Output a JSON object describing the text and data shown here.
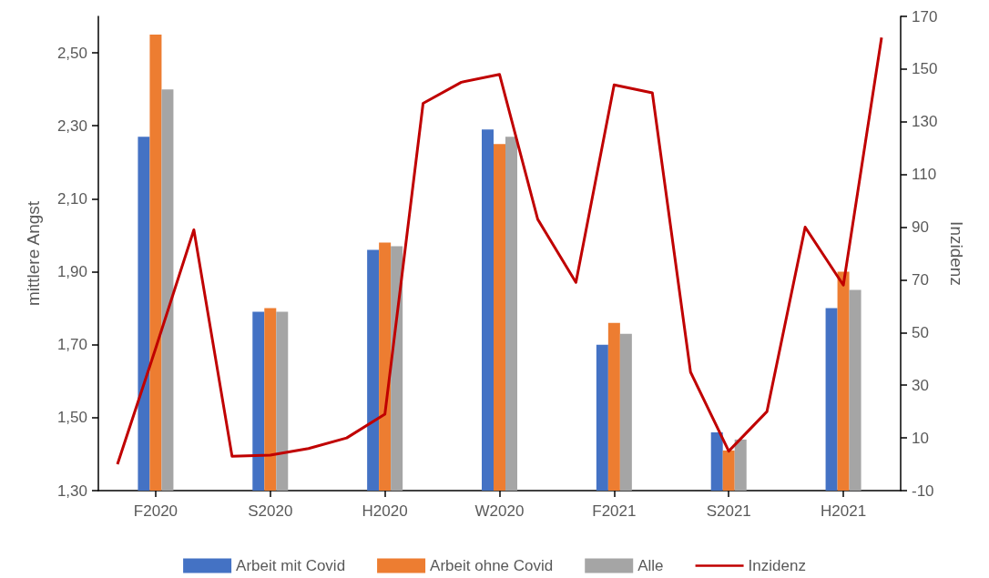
{
  "chart_data": {
    "type": "bar",
    "ylabel": "mittlere Angst",
    "y2label": "Inzidenz",
    "categories": [
      null,
      "F2020",
      null,
      null,
      "S2020",
      null,
      null,
      "H2020",
      null,
      null,
      "W2020",
      null,
      null,
      "F2021",
      null,
      null,
      "S2021",
      null,
      null,
      "H2021",
      null
    ],
    "series": [
      {
        "name": "Arbeit mit Covid",
        "color": "#4472c4",
        "values": [
          null,
          2.27,
          null,
          null,
          1.79,
          null,
          null,
          1.96,
          null,
          null,
          2.29,
          null,
          null,
          1.7,
          null,
          null,
          1.46,
          null,
          null,
          1.8,
          null
        ]
      },
      {
        "name": "Arbeit ohne Covid",
        "color": "#ed7d31",
        "values": [
          null,
          2.55,
          null,
          null,
          1.8,
          null,
          null,
          1.98,
          null,
          null,
          2.25,
          null,
          null,
          1.76,
          null,
          null,
          1.41,
          null,
          null,
          1.9,
          null
        ]
      },
      {
        "name": "Alle",
        "color": "#a5a5a5",
        "values": [
          null,
          2.4,
          null,
          null,
          1.79,
          null,
          null,
          1.97,
          null,
          null,
          2.27,
          null,
          null,
          1.73,
          null,
          null,
          1.44,
          null,
          null,
          1.85,
          null
        ]
      },
      {
        "name": "Inzidenz",
        "type": "line",
        "axis": "y2",
        "color": "#c00000",
        "values": [
          0,
          44,
          89,
          3,
          3.5,
          6,
          10,
          19,
          137,
          145,
          148,
          93,
          69,
          144,
          141,
          35,
          5,
          20,
          90,
          68,
          162
        ]
      }
    ],
    "ylim": [
      1.3,
      2.6
    ],
    "yticks": [
      {
        "value": 1.3,
        "label": "1,30"
      },
      {
        "value": 1.5,
        "label": "1,50"
      },
      {
        "value": 1.7,
        "label": "1,70"
      },
      {
        "value": 1.9,
        "label": "1,90"
      },
      {
        "value": 2.1,
        "label": "2,10"
      },
      {
        "value": 2.3,
        "label": "2,30"
      },
      {
        "value": 2.5,
        "label": "2,50"
      }
    ],
    "y2lim": [
      -10,
      170
    ],
    "y2ticks": [
      -10,
      10,
      30,
      50,
      70,
      90,
      110,
      130,
      150,
      170
    ],
    "grid": false,
    "legend": "bottom",
    "marker": "none"
  }
}
